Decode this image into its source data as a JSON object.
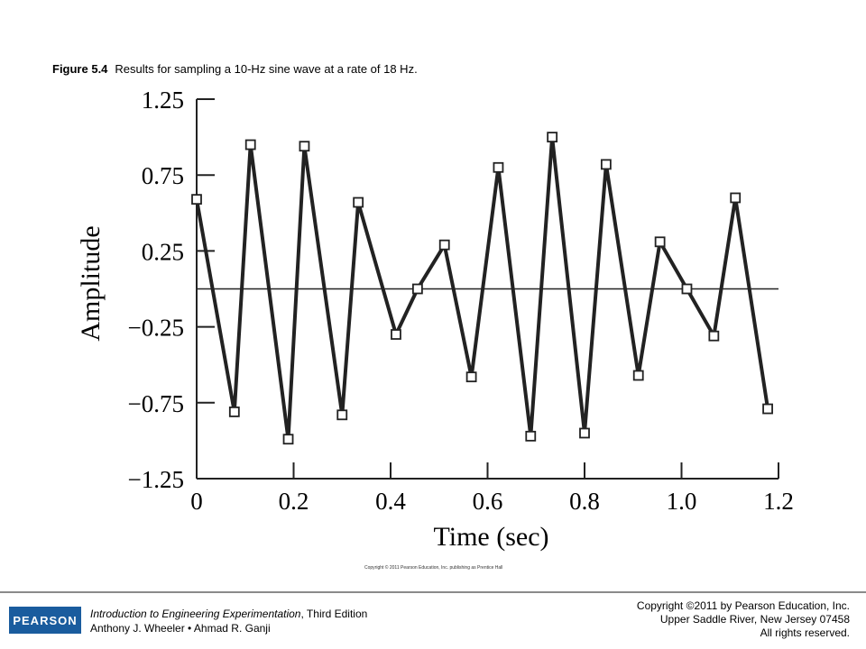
{
  "caption": {
    "figure_label": "Figure 5.4",
    "text": "Results for sampling a 10-Hz sine wave at a rate of 18 Hz."
  },
  "chart_data": {
    "type": "line",
    "xlabel": "Time (sec)",
    "ylabel": "Amplitude",
    "xlim": [
      0,
      1.2
    ],
    "ylim": [
      -1.25,
      1.25
    ],
    "x_ticks": [
      "0",
      "0.2",
      "0.4",
      "0.6",
      "0.8",
      "1.0",
      "1.2"
    ],
    "y_ticks": [
      "1.25",
      "0.75",
      "0.25",
      "−0.25",
      "−0.75",
      "−1.25"
    ],
    "y_tick_values": [
      1.25,
      0.75,
      0.25,
      -0.25,
      -0.75,
      -1.25
    ],
    "x_tick_values": [
      0,
      0.2,
      0.4,
      0.6,
      0.8,
      1.0,
      1.2
    ],
    "reference_line_y": 0,
    "marker": "open-square",
    "series": [
      {
        "x": [
          0.0,
          0.0778,
          0.1111,
          0.1889,
          0.2222,
          0.3,
          0.3333,
          0.4111,
          0.4556,
          0.5111,
          0.5667,
          0.6222,
          0.6889,
          0.7333,
          0.8,
          0.8444,
          0.9111,
          0.9556,
          1.0111,
          1.0667,
          1.1111,
          1.1778
        ],
        "values": [
          0.59,
          -0.81,
          0.95,
          -0.99,
          0.94,
          -0.83,
          0.57,
          -0.3,
          0.0,
          0.29,
          -0.58,
          0.8,
          -0.97,
          1.0,
          -0.95,
          0.82,
          -0.57,
          0.31,
          0.0,
          -0.31,
          0.6,
          -0.79
        ]
      }
    ]
  },
  "chart_copyright": "Copyright © 2011 Pearson Education, Inc. publishing as Prentice Hall",
  "footer": {
    "logo_text": "PEARSON",
    "book_title": "Introduction to Engineering Experimentation",
    "book_edition": ", Third Edition",
    "authors": "Anthony J. Wheeler • Ahmad R. Ganji",
    "copyright_line1": "Copyright ©2011 by Pearson Education, Inc.",
    "copyright_line2": "Upper Saddle River, New Jersey 07458",
    "copyright_line3": "All rights reserved."
  }
}
